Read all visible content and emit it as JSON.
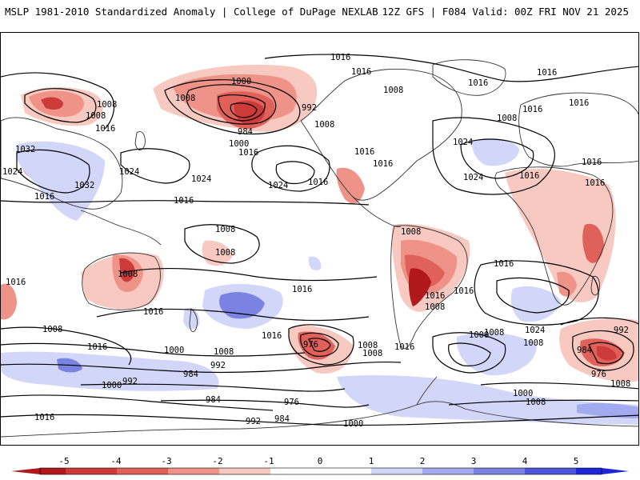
{
  "header": {
    "title_left": "MSLP 1981-2010 Standardized Anomaly | College of DuPage NEXLAB",
    "title_right": "12Z GFS | F084 Valid: 00Z FRI NOV 21 2025"
  },
  "colors": {
    "neg5": "#b0181c",
    "neg4": "#cc3a3a",
    "neg3": "#e0605a",
    "neg2": "#ef9388",
    "neg1": "#f8c9c0",
    "zero": "#ffffff",
    "pos1": "#d2d6f8",
    "pos2": "#a3abf0",
    "pos3": "#7a82e2",
    "pos4": "#4d55dd",
    "pos5": "#1d26d8",
    "contour": "#000000",
    "coast": "#333333"
  },
  "colorbar": {
    "ticks": [
      "-5",
      "-4",
      "-3",
      "-2",
      "-1",
      "0",
      "1",
      "2",
      "3",
      "4",
      "5"
    ]
  },
  "isobar_labels": [
    "1016",
    "1016",
    "1008",
    "1008",
    "1000",
    "992",
    "1008",
    "1016",
    "1016",
    "984",
    "1008",
    "1000",
    "1016",
    "1016",
    "1032",
    "1024",
    "1024",
    "1024",
    "1024",
    "1016",
    "1032",
    "1016",
    "1024",
    "1016",
    "1016",
    "1016",
    "1016",
    "1016",
    "1024",
    "1016",
    "1016",
    "1008",
    "1008",
    "1008",
    "1008",
    "1016",
    "1016",
    "1016",
    "1008",
    "1016",
    "1016",
    "1008",
    "976",
    "1008",
    "1000",
    "1024",
    "1016",
    "992",
    "1008",
    "1000",
    "1008",
    "992",
    "984",
    "1008",
    "984",
    "976",
    "1000",
    "992",
    "1000",
    "1008",
    "984",
    "976",
    "992",
    "984",
    "1000",
    "1008",
    "1016",
    "1016",
    "1016",
    "1008",
    "1016",
    "1008",
    "1016",
    "1008"
  ]
}
